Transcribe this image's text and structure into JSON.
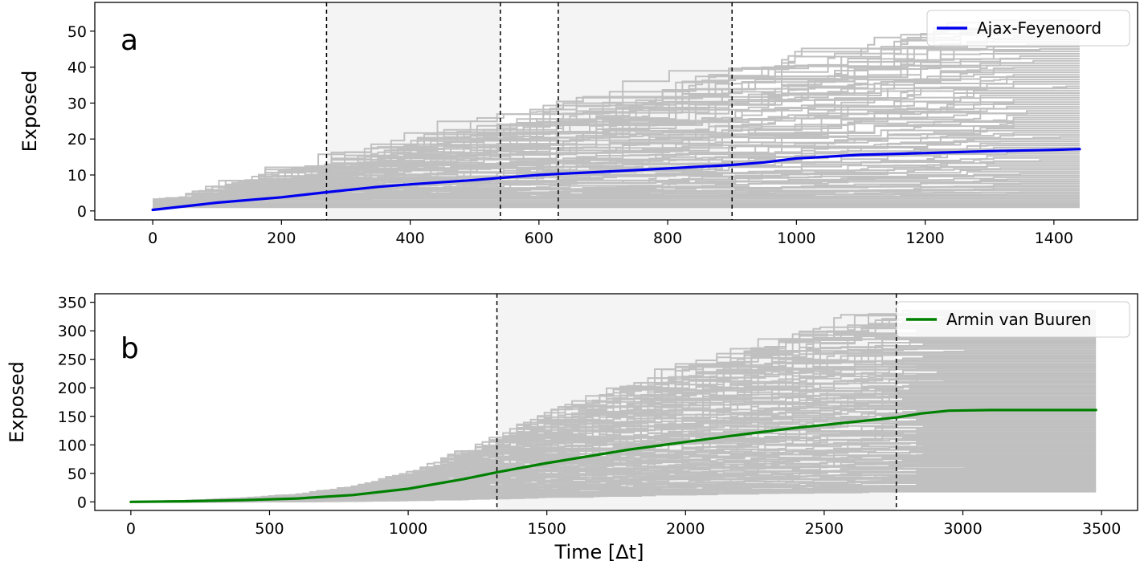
{
  "chart_data": [
    {
      "type": "line",
      "panel_label": "a",
      "xlabel": "",
      "ylabel": "Exposed",
      "xlim": [
        -90,
        1530
      ],
      "ylim": [
        -2.5,
        58
      ],
      "xticks": [
        0,
        200,
        400,
        600,
        800,
        1000,
        1200,
        1400
      ],
      "yticks": [
        0,
        10,
        20,
        30,
        40,
        50
      ],
      "grid": false,
      "legend_position": "top-right",
      "shaded_intervals": [
        [
          270,
          540
        ],
        [
          630,
          900
        ]
      ],
      "vlines": [
        270,
        540,
        630,
        900
      ],
      "series": [
        {
          "name": "Ajax-Feyenoord",
          "color": "#0000ee",
          "x": [
            0,
            100,
            200,
            270,
            350,
            400,
            500,
            540,
            600,
            630,
            700,
            800,
            900,
            950,
            1000,
            1100,
            1200,
            1300,
            1400,
            1440
          ],
          "values": [
            0.3,
            2.3,
            3.8,
            5.2,
            6.7,
            7.4,
            8.6,
            9.2,
            10.0,
            10.3,
            10.9,
            11.8,
            12.8,
            13.5,
            14.6,
            15.6,
            16.1,
            16.6,
            17.0,
            17.2
          ]
        }
      ],
      "background_runs": {
        "color": "#c0c0c0",
        "count": 90,
        "x_max": 1440,
        "final_min": 1,
        "final_max": 53
      }
    },
    {
      "type": "line",
      "panel_label": "b",
      "xlabel": "Time [Δt]",
      "ylabel": "Exposed",
      "xlim": [
        -130,
        3630
      ],
      "ylim": [
        -15,
        365
      ],
      "xticks": [
        0,
        500,
        1000,
        1500,
        2000,
        2500,
        3000,
        3500
      ],
      "yticks": [
        0,
        50,
        100,
        150,
        200,
        250,
        300,
        350
      ],
      "grid": false,
      "legend_position": "top-right",
      "shaded_intervals": [
        [
          1320,
          2760
        ]
      ],
      "vlines": [
        1320,
        2760
      ],
      "series": [
        {
          "name": "Armin van Buuren",
          "color": "#008000",
          "x": [
            0,
            200,
            400,
            600,
            800,
            1000,
            1200,
            1320,
            1500,
            1800,
            2000,
            2200,
            2400,
            2600,
            2760,
            2850,
            2950,
            3100,
            3480
          ],
          "values": [
            0,
            1,
            3,
            6,
            12,
            23,
            40,
            52,
            68,
            92,
            105,
            118,
            130,
            140,
            148,
            155,
            160,
            161,
            161
          ]
        }
      ],
      "background_runs": {
        "color": "#c0c0c0",
        "count": 130,
        "x_max": 3480,
        "final_min": 18,
        "final_max": 335
      }
    }
  ]
}
